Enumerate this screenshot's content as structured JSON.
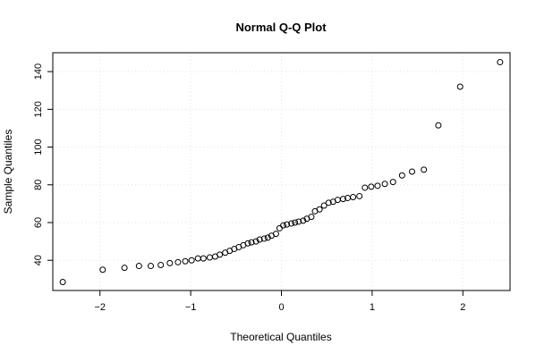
{
  "chart_data": {
    "type": "scatter",
    "title": "Normal Q-Q Plot",
    "xlabel": "Theoretical Quantiles",
    "ylabel": "Sample Quantiles",
    "xlim": [
      -2.52,
      2.52
    ],
    "ylim": [
      24,
      150
    ],
    "x_ticks": [
      -2,
      -1,
      0,
      1,
      2
    ],
    "x_tick_labels": [
      "−2",
      "−1",
      "0",
      "1",
      "2"
    ],
    "y_ticks": [
      40,
      60,
      80,
      100,
      120,
      140
    ],
    "y_tick_labels": [
      "40",
      "60",
      "80",
      "100",
      "120",
      "140"
    ],
    "grid": true,
    "marker": "open-circle",
    "series": [
      {
        "x": [
          -2.41,
          -1.97,
          -1.73,
          -1.57,
          -1.44,
          -1.33,
          -1.23,
          -1.14,
          -1.06,
          -0.99,
          -0.92,
          -0.86,
          -0.79,
          -0.73,
          -0.68,
          -0.62,
          -0.57,
          -0.52,
          -0.47,
          -0.42,
          -0.37,
          -0.33,
          -0.28,
          -0.24,
          -0.19,
          -0.15,
          -0.11,
          -0.06,
          -0.02,
          0.02,
          0.06,
          0.11,
          0.15,
          0.19,
          0.24,
          0.28,
          0.33,
          0.37,
          0.42,
          0.47,
          0.52,
          0.57,
          0.62,
          0.68,
          0.73,
          0.79,
          0.86,
          0.92,
          0.99,
          1.06,
          1.14,
          1.23,
          1.33,
          1.44,
          1.57,
          1.73,
          1.97,
          2.41
        ],
        "y": [
          28.5,
          35,
          36,
          37,
          37,
          37.5,
          38.5,
          39,
          39.5,
          40,
          41,
          41,
          41.5,
          42,
          43,
          44,
          45,
          46,
          47,
          48,
          49,
          49.5,
          50,
          51,
          51.5,
          52,
          53,
          54,
          57,
          58.5,
          59,
          59.5,
          60,
          60.5,
          61,
          62,
          63,
          66,
          67,
          69,
          70.5,
          71,
          72,
          72.5,
          73,
          73.5,
          74,
          78.5,
          79,
          79.5,
          80.5,
          81.5,
          85,
          87,
          88,
          111.5,
          132,
          145
        ]
      }
    ]
  }
}
